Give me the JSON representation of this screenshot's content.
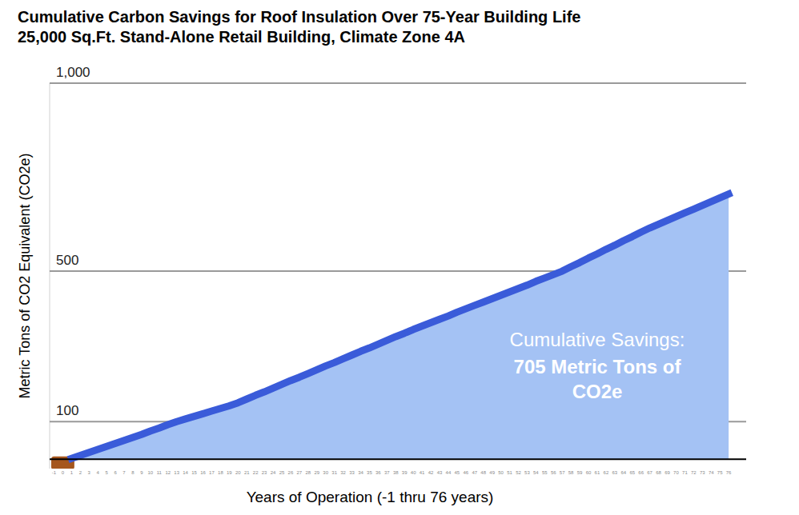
{
  "chart_data": {
    "type": "area",
    "title": "Cumulative Carbon Savings for Roof Insulation Over 75-Year Building Life",
    "subtitle": "25,000 Sq.Ft. Stand-Alone Retail Building, Climate Zone 4A",
    "x_label": "Years of Operation (-1 thru 76 years)",
    "y_label": "Metric Tons of CO2 Equivalent (CO2e)",
    "annotations": [
      "Cumulative Savings:",
      "705 Metric Tons of CO2e"
    ],
    "x": [
      -1,
      0,
      1,
      2,
      3,
      4,
      5,
      6,
      7,
      8,
      9,
      10,
      11,
      12,
      13,
      14,
      15,
      16,
      17,
      18,
      19,
      20,
      21,
      22,
      23,
      24,
      25,
      26,
      27,
      28,
      29,
      30,
      31,
      32,
      33,
      34,
      35,
      36,
      37,
      38,
      39,
      40,
      41,
      42,
      43,
      44,
      45,
      46,
      47,
      48,
      49,
      50,
      51,
      52,
      53,
      54,
      55,
      56,
      57,
      58,
      59,
      60,
      61,
      62,
      63,
      64,
      65,
      66,
      67,
      68,
      69,
      70,
      71,
      72,
      73,
      74,
      75,
      76
    ],
    "series": [
      {
        "color": "#a5561d",
        "values": [
          -20,
          -20,
          -20,
          null,
          null,
          null,
          null,
          null,
          null,
          null,
          null,
          null,
          null,
          null,
          null,
          null,
          null,
          null,
          null,
          null,
          null,
          null,
          null,
          null,
          null,
          null,
          null,
          null,
          null,
          null,
          null,
          null,
          null,
          null,
          null,
          null,
          null,
          null,
          null,
          null,
          null,
          null,
          null,
          null,
          null,
          null,
          null,
          null,
          null,
          null,
          null,
          null,
          null,
          null,
          null,
          null,
          null,
          null,
          null,
          null,
          null,
          null,
          null,
          null,
          null,
          null,
          null,
          null,
          null,
          null,
          null,
          null,
          null,
          null,
          null,
          null,
          null,
          null
        ]
      },
      {
        "color": "#3a5bd9",
        "values": [
          null,
          null,
          2,
          10,
          18,
          26,
          34,
          42,
          50,
          58,
          66,
          75,
          83,
          92,
          100,
          107,
          114,
          121,
          128,
          135,
          142,
          150,
          160,
          170,
          179,
          189,
          199,
          209,
          218,
          228,
          238,
          248,
          257,
          267,
          277,
          287,
          296,
          306,
          316,
          326,
          335,
          345,
          354,
          363,
          372,
          381,
          391,
          400,
          409,
          418,
          427,
          436,
          445,
          454,
          463,
          473,
          482,
          491,
          500,
          512,
          523,
          535,
          546,
          558,
          569,
          581,
          592,
          604,
          615,
          625,
          635,
          645,
          655,
          665,
          675,
          685,
          695,
          705
        ]
      }
    ],
    "xlim": [
      -1.5,
      78
    ],
    "xticks": [
      -1,
      0,
      1,
      2,
      3,
      4,
      5,
      6,
      7,
      8,
      9,
      10,
      11,
      12,
      13,
      14,
      15,
      16,
      17,
      18,
      19,
      20,
      21,
      22,
      23,
      24,
      25,
      26,
      27,
      28,
      29,
      30,
      31,
      32,
      33,
      34,
      35,
      36,
      37,
      38,
      39,
      40,
      41,
      42,
      43,
      44,
      45,
      46,
      47,
      48,
      49,
      50,
      51,
      52,
      53,
      54,
      55,
      56,
      57,
      58,
      59,
      60,
      61,
      62,
      63,
      64,
      65,
      66,
      67,
      68,
      69,
      70,
      71,
      72,
      73,
      74,
      75,
      76
    ],
    "ylim": [
      -25,
      1000
    ],
    "yticks": [
      100,
      500,
      {
        "value": 1000,
        "label": "1,000"
      }
    ],
    "grid": true
  }
}
